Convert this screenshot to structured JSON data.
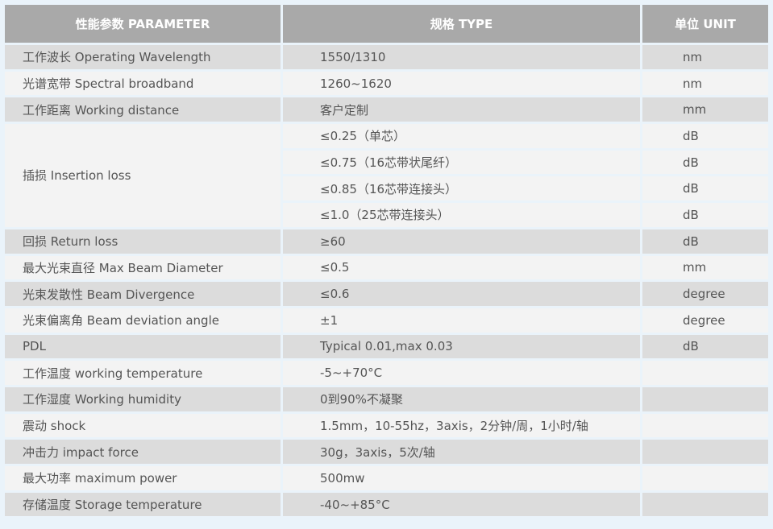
{
  "header": {
    "parameter": "性能参数 PARAMETER",
    "type": "规格 TYPE",
    "unit": "单位 UNIT"
  },
  "rows": [
    {
      "param": "工作波长  Operating Wavelength",
      "type": "1550/1310",
      "unit": "nm"
    },
    {
      "param": "光谱宽带  Spectral broadband",
      "type": "1260~1620",
      "unit": "nm"
    },
    {
      "param": "工作距离  Working distance",
      "type": "客户定制",
      "unit": "mm"
    },
    {
      "param": "插损  Insertion loss",
      "type": "≤0.25（单芯）",
      "unit": "dB",
      "span": 4
    },
    {
      "type": "≤0.75（16芯带状尾纤）",
      "unit": "dB"
    },
    {
      "type": "≤0.85（16芯带连接头）",
      "unit": "dB"
    },
    {
      "type": "≤1.0（25芯带连接头）",
      "unit": "dB"
    },
    {
      "param": "回损  Return loss",
      "type": "≥60",
      "unit": "dB"
    },
    {
      "param": "最大光束直径  Max Beam Diameter",
      "type": "≤0.5",
      "unit": "mm"
    },
    {
      "param": "光束发散性  Beam Divergence",
      "type": "≤0.6",
      "unit": "degree"
    },
    {
      "param": "光束偏离角  Beam deviation angle",
      "type": "±1",
      "unit": "degree"
    },
    {
      "param": "PDL",
      "type": "Typical 0.01,max 0.03",
      "unit": "dB"
    },
    {
      "param": "工作温度  working temperature",
      "type": "-5~+70°C",
      "unit": ""
    },
    {
      "param": "工作湿度  Working humidity",
      "type": "0到90%不凝聚",
      "unit": ""
    },
    {
      "param": "震动  shock",
      "type": "1.5mm，10-55hz，3axis，2分钟/周，1小时/轴",
      "unit": ""
    },
    {
      "param": "冲击力  impact force",
      "type": "30g，3axis，5次/轴",
      "unit": ""
    },
    {
      "param": "最大功率  maximum power",
      "type": "500mw",
      "unit": ""
    },
    {
      "param": "存储温度  Storage temperature",
      "type": "-40~+85°C",
      "unit": ""
    }
  ]
}
